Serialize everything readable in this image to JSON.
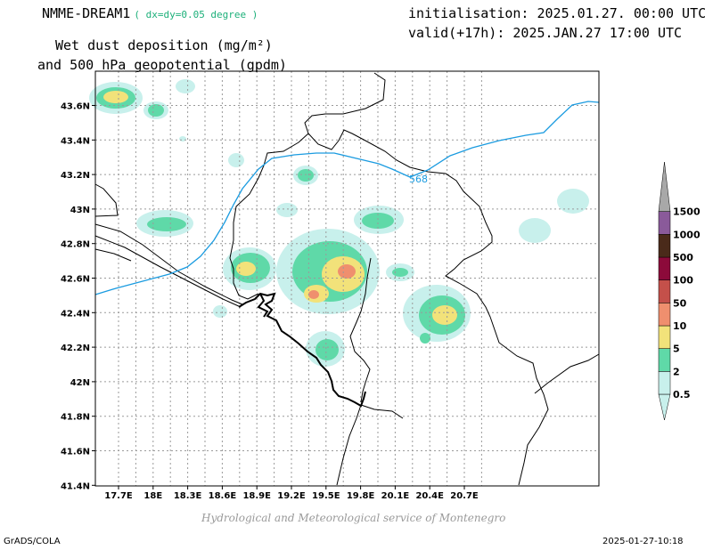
{
  "header": {
    "model": "NMME-DREAM1",
    "resolution": "( dx=dy=0.05 degree )",
    "init": "initialisation: 2025.01.27. 00:00 UTC",
    "valid": "valid(+17h): 2025.JAN.27 17:00 UTC",
    "variable_line1": "Wet dust deposition (mg/m²)",
    "variable_line2": "and 500 hPa geopotential (gpdm)"
  },
  "map": {
    "x_ticks": [
      "17.7E",
      "18E",
      "18.3E",
      "18.6E",
      "18.9E",
      "19.2E",
      "19.5E",
      "19.8E",
      "20.1E",
      "20.4E",
      "20.7E"
    ],
    "y_ticks": [
      "43.6N",
      "43.4N",
      "43.2N",
      "43N",
      "42.8N",
      "42.6N",
      "42.4N",
      "42.2N",
      "42N",
      "41.8N",
      "41.6N",
      "41.4N"
    ],
    "contour_label": "568",
    "contour_color": "#1a9be0",
    "grid": true
  },
  "legend": {
    "labels": [
      "0.5",
      "2",
      "5",
      "10",
      "50",
      "100",
      "500",
      "1000",
      "1500"
    ],
    "colors": [
      "#c8f0ec",
      "#5fd9a8",
      "#f2e27a",
      "#ef8f6e",
      "#c4504a",
      "#8c0a3a",
      "#4a2a1a",
      "#8a5a9a",
      "#a8a8a8"
    ]
  },
  "footer": {
    "software": "GrADS/COLA",
    "timestamp": "2025-01-27-10:18",
    "credit": "Hydrological and Meteorological service of Montenegro"
  }
}
